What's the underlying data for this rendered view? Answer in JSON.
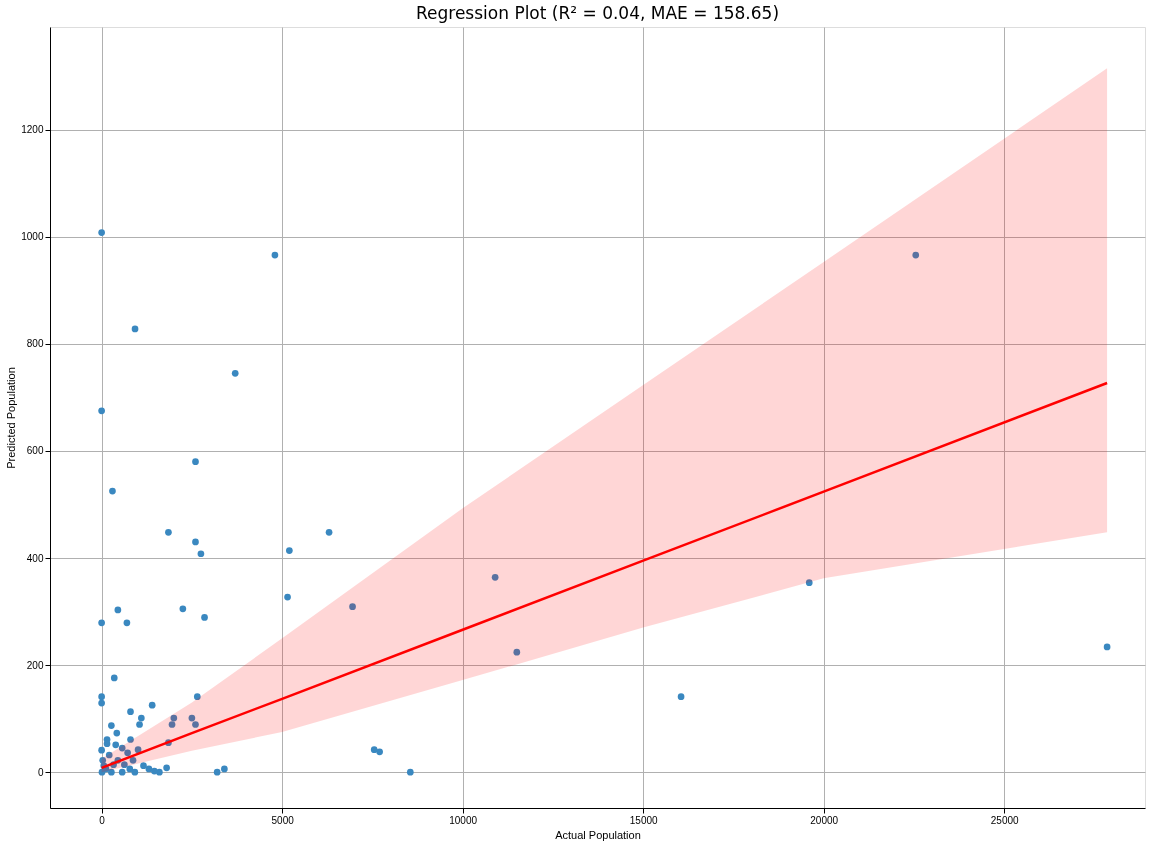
{
  "chart_data": {
    "type": "scatter",
    "title": "Regression Plot (R² = 0.04, MAE = 158.65)",
    "xlabel": "Actual Population",
    "ylabel": "Predicted Population",
    "xlim": [
      -1430,
      28900
    ],
    "ylim": [
      -67,
      1392
    ],
    "xticks": [
      0,
      5000,
      10000,
      15000,
      20000,
      25000
    ],
    "yticks": [
      0,
      200,
      400,
      600,
      800,
      1000,
      1200
    ],
    "grid": true,
    "series": [
      {
        "marker": "circle",
        "color": "#3a88c0",
        "x": [
          0,
          4800,
          925,
          3700,
          0,
          2600,
          300,
          1850,
          2600,
          2750,
          6300,
          5200,
          5150,
          6950,
          10900,
          11500,
          16050,
          19600,
          22550,
          27850,
          7550,
          7700,
          8550,
          2250,
          2850,
          450,
          0,
          700,
          350,
          0,
          0,
          2650,
          1400,
          800,
          1100,
          1050,
          2000,
          1950,
          2500,
          2600,
          1850,
          1800,
          1600,
          3200,
          3400,
          270,
          420,
          150,
          800,
          570,
          870,
          1160,
          1310,
          1460,
          0,
          30,
          120,
          270,
          570,
          780,
          450,
          210,
          390,
          720,
          1010,
          60,
          10,
          150,
          330,
          630,
          920
        ],
        "values": [
          1008,
          966,
          828,
          745,
          675,
          580,
          525,
          448,
          430,
          408,
          448,
          414,
          327,
          309,
          364,
          224,
          141,
          354,
          966,
          234,
          42,
          38,
          0,
          305,
          289,
          303,
          279,
          279,
          176,
          141,
          129,
          141,
          125,
          113,
          101,
          89,
          101,
          89,
          101,
          89,
          55,
          8,
          0,
          0,
          6,
          87,
          73,
          61,
          61,
          45,
          22,
          12,
          6,
          2,
          41,
          22,
          6,
          0,
          0,
          6,
          22,
          32,
          51,
          36,
          42,
          12,
          0,
          53,
          14,
          14,
          0
        ]
      },
      {
        "type": "line",
        "color": "#ff0000",
        "x": [
          0,
          2500,
          5000,
          10000,
          15000,
          20000,
          27850
        ],
        "values": [
          8,
          73,
          137,
          266,
          395,
          524,
          727
        ],
        "lower": [
          0,
          40,
          75,
          172,
          270,
          362,
          448
        ],
        "upper": [
          25,
          130,
          250,
          493,
          723,
          953,
          1315
        ]
      }
    ]
  }
}
